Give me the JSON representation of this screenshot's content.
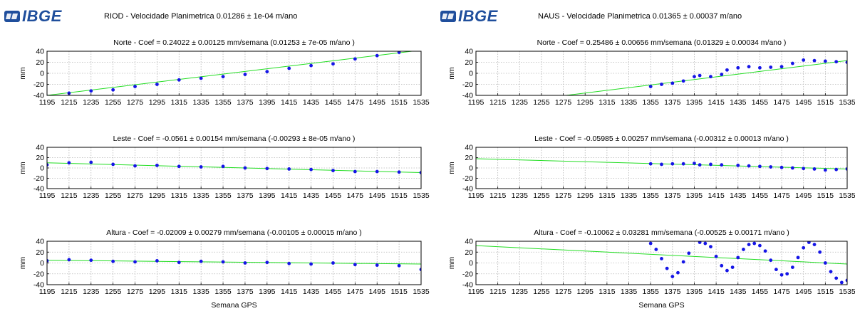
{
  "panels": [
    {
      "logo": "IBGE",
      "title": "RIOD - Velocidade Planimetrica 0.01286 ± 1e-04 m/ano",
      "xlabel": "Semana GPS"
    },
    {
      "logo": "IBGE",
      "title": "NAUS - Velocidade Planimetrica 0.01365 ± 0.00037 m/ano",
      "xlabel": "Semana GPS"
    }
  ],
  "colors": {
    "points": "#1515e6",
    "fit": "#22dd22",
    "grid": "#b8b8b8",
    "logo": "#1f4e9c"
  },
  "chart_data": [
    {
      "type": "scatter",
      "station": "RIOD",
      "component": "Norte",
      "title": "Norte - Coef = 0.24022 ± 0.00125 mm/semana (0.01253 ± 7e-05 m/ano )",
      "ylabel": "mm",
      "xlim": [
        1195,
        1535
      ],
      "ylim": [
        -40,
        40
      ],
      "xticks": [
        1195,
        1215,
        1235,
        1255,
        1275,
        1295,
        1315,
        1335,
        1355,
        1375,
        1395,
        1415,
        1435,
        1455,
        1475,
        1495,
        1515,
        1535
      ],
      "yticks": [
        40,
        20,
        0,
        -20,
        -40
      ],
      "grid": true,
      "x": [
        1195,
        1215,
        1235,
        1255,
        1275,
        1295,
        1315,
        1335,
        1355,
        1375,
        1395,
        1415,
        1435,
        1455,
        1475,
        1495,
        1515,
        1535
      ],
      "y": [
        -42,
        -36,
        -32,
        -30,
        -24,
        -20,
        -12,
        -9,
        -6,
        -2,
        3,
        9,
        14,
        17,
        26,
        32,
        38,
        43
      ],
      "fit": {
        "x": [
          1195,
          1535
        ],
        "y": [
          -40,
          42
        ]
      }
    },
    {
      "type": "scatter",
      "station": "RIOD",
      "component": "Leste",
      "title": "Leste - Coef = -0.0561 ± 0.00154 mm/semana (-0.00293 ± 8e-05 m/ano )",
      "ylabel": "mm",
      "xlim": [
        1195,
        1535
      ],
      "ylim": [
        -40,
        40
      ],
      "xticks": [
        1195,
        1215,
        1235,
        1255,
        1275,
        1295,
        1315,
        1335,
        1355,
        1375,
        1395,
        1415,
        1435,
        1455,
        1475,
        1495,
        1515,
        1535
      ],
      "yticks": [
        40,
        20,
        0,
        -20,
        -40
      ],
      "grid": true,
      "x": [
        1195,
        1215,
        1235,
        1255,
        1275,
        1295,
        1315,
        1335,
        1355,
        1375,
        1395,
        1415,
        1435,
        1455,
        1475,
        1495,
        1515,
        1535
      ],
      "y": [
        6,
        10,
        11,
        7,
        4,
        5,
        3,
        2,
        3,
        0,
        -1,
        -2,
        -3,
        -5,
        -7,
        -7,
        -8,
        -9
      ],
      "fit": {
        "x": [
          1195,
          1535
        ],
        "y": [
          10,
          -9
        ]
      }
    },
    {
      "type": "scatter",
      "station": "RIOD",
      "component": "Altura",
      "title": "Altura - Coef = -0.02009 ± 0.00279 mm/semana (-0.00105 ± 0.00015 m/ano )",
      "ylabel": "mm",
      "xlim": [
        1195,
        1535
      ],
      "ylim": [
        -40,
        40
      ],
      "xticks": [
        1195,
        1215,
        1235,
        1255,
        1275,
        1295,
        1315,
        1335,
        1355,
        1375,
        1395,
        1415,
        1435,
        1455,
        1475,
        1495,
        1515,
        1535
      ],
      "yticks": [
        40,
        20,
        0,
        -20,
        -40
      ],
      "grid": true,
      "x": [
        1195,
        1215,
        1235,
        1255,
        1275,
        1295,
        1315,
        1335,
        1355,
        1375,
        1395,
        1415,
        1435,
        1455,
        1475,
        1495,
        1515,
        1535
      ],
      "y": [
        4,
        6,
        5,
        3,
        2,
        4,
        1,
        3,
        2,
        0,
        1,
        -1,
        -2,
        0,
        -3,
        -4,
        -5,
        -12
      ],
      "fit": {
        "x": [
          1195,
          1535
        ],
        "y": [
          5,
          -2
        ]
      }
    },
    {
      "type": "scatter",
      "station": "NAUS",
      "component": "Norte",
      "title": "Norte - Coef = 0.25486 ± 0.00656 mm/semana (0.01329 ± 0.00034 m/ano )",
      "ylabel": "mm",
      "xlim": [
        1195,
        1535
      ],
      "ylim": [
        -40,
        40
      ],
      "xticks": [
        1195,
        1215,
        1235,
        1255,
        1275,
        1295,
        1315,
        1335,
        1355,
        1375,
        1395,
        1415,
        1435,
        1455,
        1475,
        1495,
        1515,
        1535
      ],
      "yticks": [
        40,
        20,
        0,
        -20,
        -40
      ],
      "grid": true,
      "x": [
        1355,
        1365,
        1375,
        1385,
        1395,
        1400,
        1410,
        1420,
        1425,
        1435,
        1445,
        1455,
        1465,
        1475,
        1485,
        1495,
        1505,
        1515,
        1525,
        1535
      ],
      "y": [
        -24,
        -20,
        -18,
        -14,
        -6,
        -4,
        -6,
        -2,
        6,
        10,
        12,
        10,
        11,
        12,
        18,
        24,
        23,
        22,
        21,
        20
      ],
      "fit": {
        "x": [
          1245,
          1535
        ],
        "y": [
          -48,
          23
        ]
      }
    },
    {
      "type": "scatter",
      "station": "NAUS",
      "component": "Leste",
      "title": "Leste - Coef = -0.05985 ± 0.00257 mm/semana (-0.00312 ± 0.00013 m/ano )",
      "ylabel": "mm",
      "xlim": [
        1195,
        1535
      ],
      "ylim": [
        -40,
        40
      ],
      "xticks": [
        1195,
        1215,
        1235,
        1255,
        1275,
        1295,
        1315,
        1335,
        1355,
        1375,
        1395,
        1415,
        1435,
        1455,
        1475,
        1495,
        1515,
        1535
      ],
      "yticks": [
        40,
        20,
        0,
        -20,
        -40
      ],
      "grid": true,
      "x": [
        1355,
        1365,
        1375,
        1385,
        1395,
        1400,
        1410,
        1420,
        1435,
        1445,
        1455,
        1465,
        1475,
        1485,
        1495,
        1505,
        1515,
        1525,
        1535
      ],
      "y": [
        8,
        7,
        8,
        8,
        9,
        6,
        7,
        6,
        5,
        4,
        3,
        2,
        1,
        0,
        -1,
        -2,
        -4,
        -3,
        -2
      ],
      "fit": {
        "x": [
          1195,
          1535
        ],
        "y": [
          18,
          -2
        ]
      }
    },
    {
      "type": "scatter",
      "station": "NAUS",
      "component": "Altura",
      "title": "Altura - Coef = -0.10062 ± 0.03281 mm/semana (-0.00525 ± 0.00171 m/ano )",
      "ylabel": "mm",
      "xlim": [
        1195,
        1535
      ],
      "ylim": [
        -40,
        40
      ],
      "xticks": [
        1195,
        1215,
        1235,
        1255,
        1275,
        1295,
        1315,
        1335,
        1355,
        1375,
        1395,
        1415,
        1435,
        1455,
        1475,
        1495,
        1515,
        1535
      ],
      "yticks": [
        40,
        20,
        0,
        -20,
        -40
      ],
      "grid": true,
      "x": [
        1355,
        1360,
        1365,
        1370,
        1375,
        1380,
        1385,
        1390,
        1400,
        1405,
        1410,
        1415,
        1420,
        1425,
        1430,
        1435,
        1440,
        1445,
        1450,
        1455,
        1460,
        1465,
        1470,
        1475,
        1480,
        1485,
        1490,
        1495,
        1500,
        1505,
        1510,
        1515,
        1520,
        1525,
        1530,
        1535
      ],
      "y": [
        36,
        25,
        8,
        -10,
        -25,
        -18,
        2,
        18,
        38,
        36,
        30,
        12,
        -5,
        -14,
        -8,
        10,
        25,
        34,
        36,
        32,
        22,
        5,
        -12,
        -22,
        -20,
        -8,
        10,
        28,
        38,
        34,
        20,
        0,
        -16,
        -28,
        -36,
        -32
      ],
      "fit": {
        "x": [
          1195,
          1535
        ],
        "y": [
          32,
          -2
        ]
      }
    }
  ]
}
